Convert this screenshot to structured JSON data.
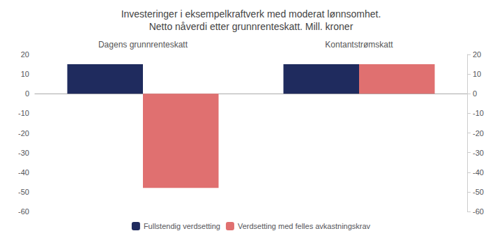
{
  "chart_data": {
    "type": "bar",
    "title": "Investeringer i eksempelkraftverk med moderat lønnsomhet.\nNetto nåverdi etter grunnrenteskatt. Mill. kroner",
    "categories": [
      "Dagens grunnrenteskatt",
      "Kontantstrømskatt"
    ],
    "series": [
      {
        "name": "Fullstendig verdsetting",
        "color": "#1f2b5e",
        "values": [
          15,
          15
        ]
      },
      {
        "name": "Verdsetting med felles avkastningskrav",
        "color": "#e07070",
        "values": [
          -48,
          15
        ]
      }
    ],
    "ylim": [
      -60,
      20
    ],
    "yticks": [
      -60,
      -50,
      -40,
      -30,
      -20,
      -10,
      0,
      10,
      20
    ],
    "grid": false,
    "legend": "bottom"
  }
}
